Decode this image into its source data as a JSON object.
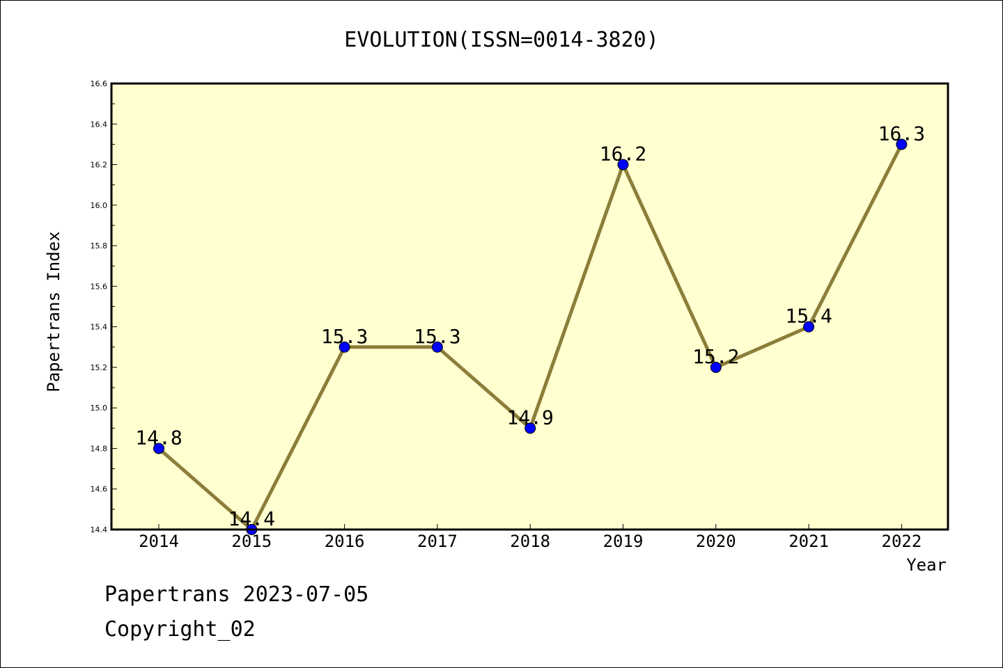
{
  "chart_data": {
    "type": "line",
    "title": "EVOLUTION(ISSN=0014-3820)",
    "xlabel": "Year",
    "ylabel": "Papertrans Index",
    "categories": [
      "2014",
      "2015",
      "2016",
      "2017",
      "2018",
      "2019",
      "2020",
      "2021",
      "2022"
    ],
    "series": [
      {
        "values": [
          14.8,
          14.4,
          15.3,
          15.3,
          14.9,
          16.2,
          15.2,
          15.4,
          16.3
        ],
        "labels": [
          "14.8",
          "14.4",
          "15.3",
          "15.3",
          "14.9",
          "16.2",
          "15.2",
          "15.4",
          "16.3"
        ]
      }
    ],
    "ylim": [
      14.4,
      16.6
    ],
    "yticks": [
      "14.4",
      "14.6",
      "14.8",
      "15.0",
      "15.2",
      "15.4",
      "15.6",
      "15.8",
      "16.0",
      "16.2",
      "16.4",
      "16.6"
    ],
    "grid": false,
    "colors": {
      "plot_background": "#ffffd0",
      "line": "#8b7d3a",
      "marker": "#0000ff",
      "marker_edge": "#000000",
      "frame": "#000000"
    }
  },
  "footer": {
    "line1": "Papertrans 2023-07-05",
    "line2": "Copyright_02"
  }
}
